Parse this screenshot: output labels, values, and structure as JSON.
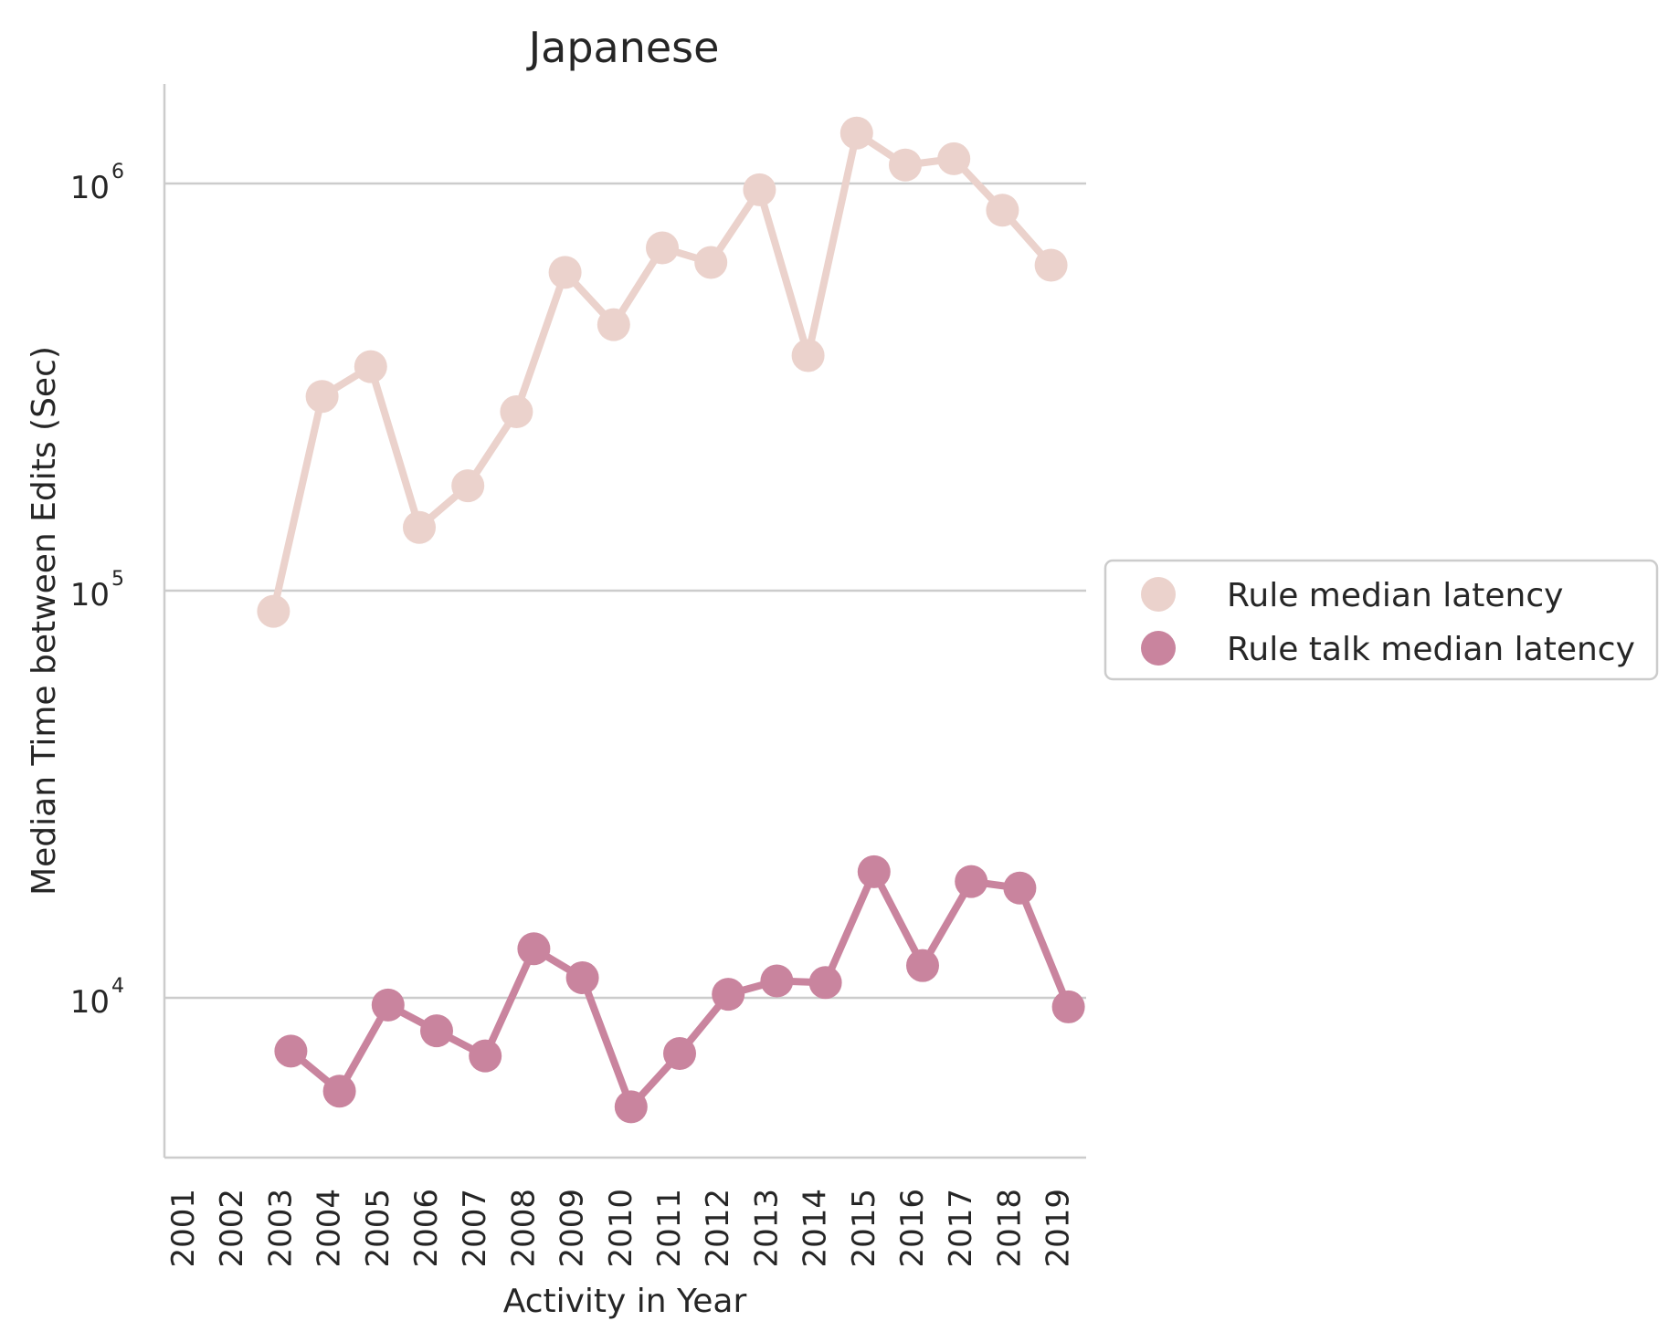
{
  "chart_data": {
    "type": "line",
    "title": "Japanese",
    "xlabel": "Activity in Year",
    "ylabel": "Median Time between Edits (Sec)",
    "yscale": "log",
    "ylim": [
      4000,
      2200000
    ],
    "yticks": [
      {
        "value": 10000,
        "base": "10",
        "exp": "4"
      },
      {
        "value": 100000,
        "base": "10",
        "exp": "5"
      },
      {
        "value": 1000000,
        "base": "10",
        "exp": "6"
      }
    ],
    "grid": "horizontal",
    "legend_position": "right",
    "categories": [
      "2001",
      "2002",
      "2003",
      "2004",
      "2005",
      "2006",
      "2007",
      "2008",
      "2009",
      "2010",
      "2011",
      "2012",
      "2013",
      "2014",
      "2015",
      "2016",
      "2017",
      "2018",
      "2019"
    ],
    "series": [
      {
        "name": "Rule median latency",
        "color": "#ebd2cc",
        "values": [
          null,
          null,
          89000,
          300000,
          355000,
          143000,
          181000,
          275000,
          605000,
          450000,
          695000,
          640000,
          965000,
          378000,
          1330000,
          1110000,
          1150000,
          860000,
          630000
        ]
      },
      {
        "name": "Rule talk median latency",
        "color": "#c9849e",
        "values": [
          null,
          null,
          7400,
          5900,
          9600,
          8300,
          7200,
          13200,
          11200,
          5400,
          7300,
          10200,
          11000,
          10900,
          20400,
          12000,
          19300,
          18600,
          9500
        ]
      }
    ]
  }
}
